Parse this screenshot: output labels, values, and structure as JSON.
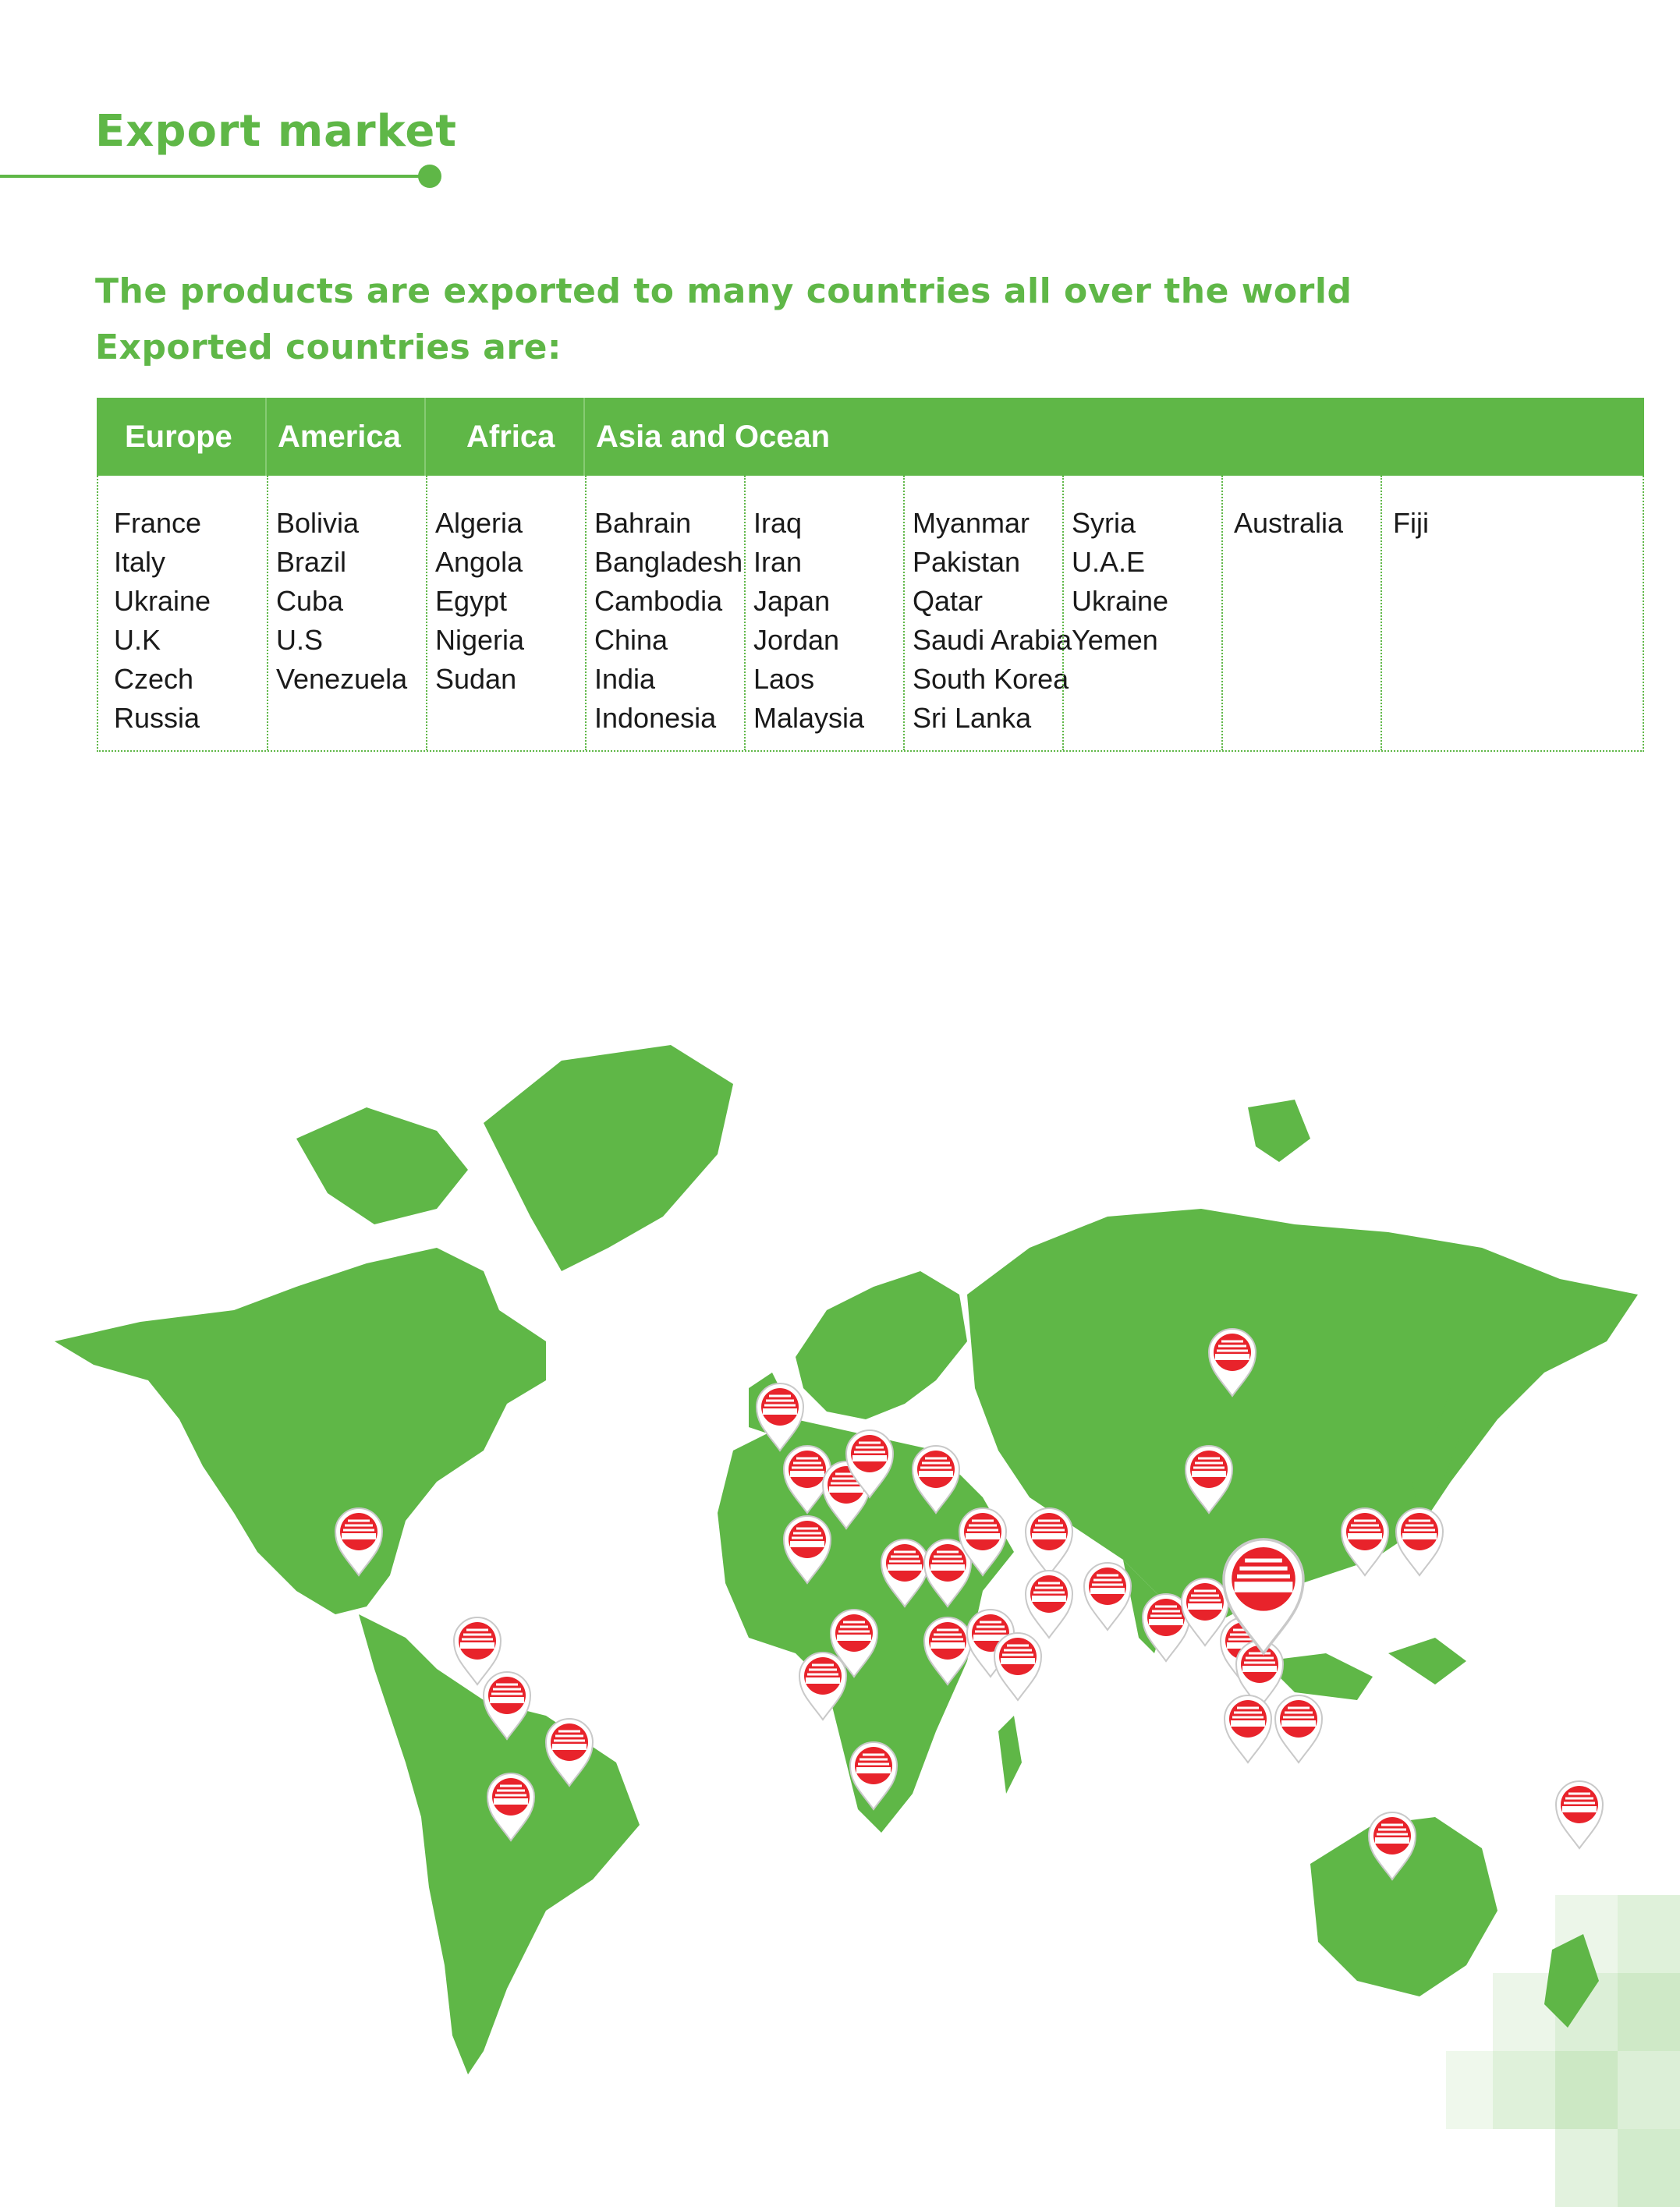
{
  "title": "Export market",
  "intro": {
    "line1": "The products are exported to many countries all over the world",
    "line2": "Exported countries are:"
  },
  "table": {
    "headers": [
      "Europe",
      "America",
      "Africa",
      "Asia and Ocean"
    ],
    "columns": [
      [
        "France",
        "Italy",
        "Ukraine",
        "U.K",
        "Czech",
        "Russia"
      ],
      [
        "Bolivia",
        "Brazil",
        "Cuba",
        "U.S",
        "Venezuela"
      ],
      [
        "Algeria",
        "Angola",
        "Egypt",
        "Nigeria",
        "Sudan"
      ],
      [
        "Bahrain",
        "Bangladesh",
        "Cambodia",
        "China",
        "India",
        "Indonesia"
      ],
      [
        "Iraq",
        "Iran",
        "Japan",
        "Jordan",
        "Laos",
        "Malaysia"
      ],
      [
        "Myanmar",
        "Pakistan",
        "Qatar",
        "Saudi Arabia",
        "South Korea",
        "Sri Lanka"
      ],
      [
        "Syria",
        "U.A.E",
        "Ukraine",
        "Yemen"
      ],
      [
        "Australia"
      ],
      [
        "Fiji"
      ]
    ]
  },
  "map": {
    "land_color": "#5fb747",
    "marker_color": "#e8232b",
    "marker_label": "Rang Dong",
    "marker_icon": "sunburst-pin-icon"
  }
}
